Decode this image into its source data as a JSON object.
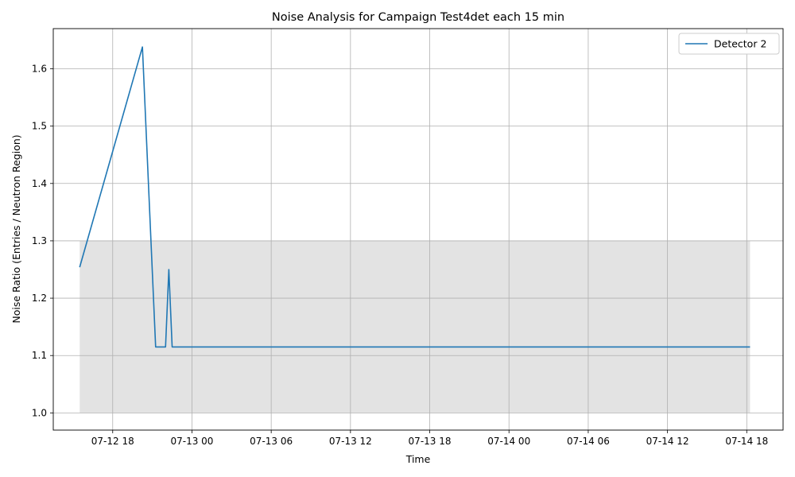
{
  "chart_data": {
    "type": "line",
    "title": "Noise Analysis for Campaign Test4det each 15 min",
    "xlabel": "Time",
    "ylabel": "Noise Ratio (Entries / Neutron Region)",
    "x_ticks": [
      {
        "value": "2025-07-12T18:00",
        "label": "07-12 18"
      },
      {
        "value": "2025-07-13T00:00",
        "label": "07-13 00"
      },
      {
        "value": "2025-07-13T06:00",
        "label": "07-13 06"
      },
      {
        "value": "2025-07-13T12:00",
        "label": "07-13 12"
      },
      {
        "value": "2025-07-13T18:00",
        "label": "07-13 18"
      },
      {
        "value": "2025-07-14T00:00",
        "label": "07-14 00"
      },
      {
        "value": "2025-07-14T06:00",
        "label": "07-14 06"
      },
      {
        "value": "2025-07-14T12:00",
        "label": "07-14 12"
      },
      {
        "value": "2025-07-14T18:00",
        "label": "07-14 18"
      }
    ],
    "y_ticks": [
      1.0,
      1.1,
      1.2,
      1.3,
      1.4,
      1.5,
      1.6
    ],
    "xlim": [
      "2025-07-12T13:30",
      "2025-07-14T20:45"
    ],
    "ylim": [
      0.97,
      1.67
    ],
    "grid": true,
    "legend_position": "top-right",
    "band": {
      "x_start": "2025-07-12T15:30",
      "x_end": "2025-07-14T18:15",
      "y_low": 1.0,
      "y_high": 1.3,
      "color": "#e3e3e3"
    },
    "series": [
      {
        "name": "Detector 2",
        "color": "#1f77b4",
        "points": [
          {
            "x": "2025-07-12T15:30",
            "y": 1.254
          },
          {
            "x": "2025-07-12T20:15",
            "y": 1.638
          },
          {
            "x": "2025-07-12T21:15",
            "y": 1.115
          },
          {
            "x": "2025-07-12T22:00",
            "y": 1.115
          },
          {
            "x": "2025-07-12T22:15",
            "y": 1.25
          },
          {
            "x": "2025-07-12T22:30",
            "y": 1.115
          },
          {
            "x": "2025-07-14T18:15",
            "y": 1.115
          }
        ]
      }
    ]
  }
}
